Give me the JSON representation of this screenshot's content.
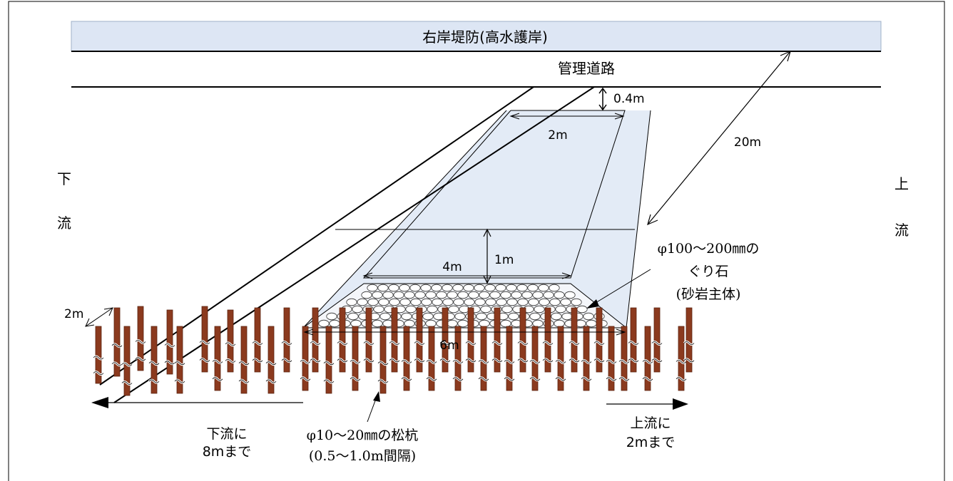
{
  "embankment_label": "右岸堤防(高水護岸)",
  "road_label": "管理道路",
  "downstream_label": [
    "下",
    "流"
  ],
  "upstream_label": [
    "上",
    "流"
  ],
  "dimensions": {
    "top_clearance": "0.4m",
    "top_width": "2m",
    "length": "20m",
    "height": "1m",
    "crest_width": "4m",
    "base_width": "6m",
    "pile_height": "2m"
  },
  "stone_note": [
    "φ100～200㎜の",
    "ぐり石",
    "(砂岩主体)"
  ],
  "pile_note": [
    "φ10～20㎜の松杭",
    "(0.5～1.0m間隔)"
  ],
  "downstream_extent": [
    "下流に",
    "8mまで"
  ],
  "upstream_extent": [
    "上流に",
    "2mまで"
  ],
  "colors": {
    "band": "#dde6f4",
    "groyne_fill": "#e3ebf6",
    "pile": "#8b3a1e",
    "pile_dark": "#5a2410",
    "line": "#000000"
  }
}
